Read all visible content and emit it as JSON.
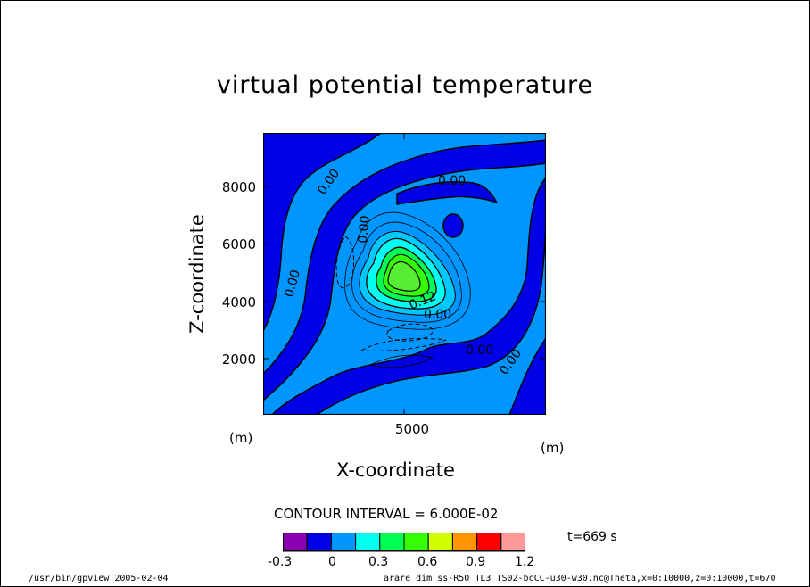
{
  "chart_data": {
    "type": "contour",
    "title": "virtual potential temperature",
    "xlabel": "X-coordinate",
    "ylabel": "Z-coordinate",
    "x_unit": "(m)",
    "y_unit": "(m)",
    "x_range": [
      0,
      10000
    ],
    "y_range": [
      0,
      10000
    ],
    "x_ticks": [
      "5000"
    ],
    "y_ticks": [
      "2000",
      "4000",
      "6000",
      "8000"
    ],
    "contour_interval_text": "CONTOUR INTERVAL = 6.000E-02",
    "contour_labels": [
      "0.00",
      "0.00",
      "0.00",
      "0.00",
      "0.00",
      "0.12",
      "0.00",
      "0.00",
      "0.00"
    ],
    "colorbar": {
      "tick_labels": [
        "-0.3",
        "0",
        "0.3",
        "0.6",
        "0.9",
        "1.2"
      ],
      "colors": [
        "#8a00b0",
        "#0000e6",
        "#0096ff",
        "#00fff0",
        "#00ff55",
        "#33ff00",
        "#d2ff00",
        "#ff9600",
        "#ff0000",
        "#ff9999"
      ]
    },
    "time_label": "t=669 s",
    "peak_value_approx": 0.6,
    "peak_location": {
      "x": 5000,
      "z": 4800
    }
  },
  "footer": {
    "left": "/usr/bin/gpview  2005-02-04",
    "right": "arare_dim_ss-R50_TL3_TS02-bcCC-u30-w30.nc@Theta,x=0:10000,z=0:10000,t=670"
  }
}
